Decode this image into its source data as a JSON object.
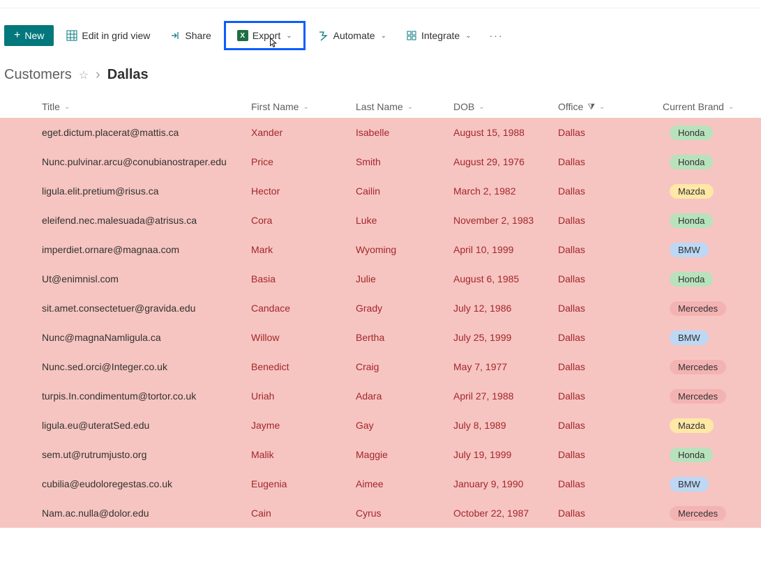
{
  "colors": {
    "row_selected_bg": "#f6c5c1",
    "toolbar_new_bg": "#03787c",
    "highlight_border": "#0b5cff",
    "text_red": "#a4262c"
  },
  "toolbar": {
    "new_label": "New",
    "edit_label": "Edit in grid view",
    "share_label": "Share",
    "export_label": "Export",
    "automate_label": "Automate",
    "integrate_label": "Integrate"
  },
  "breadcrumb": {
    "list": "Customers",
    "view": "Dallas"
  },
  "columns": {
    "title": "Title",
    "first_name": "First Name",
    "last_name": "Last Name",
    "dob": "DOB",
    "office": "Office",
    "brand": "Current Brand"
  },
  "brand_colors": {
    "Honda": "#b7e2bc",
    "Mazda": "#ffe8a6",
    "BMW": "#bcd8f5",
    "Mercedes": "#f4b3b3"
  },
  "rows": [
    {
      "title": "eget.dictum.placerat@mattis.ca",
      "first": "Xander",
      "last": "Isabelle",
      "dob": "August 15, 1988",
      "office": "Dallas",
      "brand": "Honda"
    },
    {
      "title": "Nunc.pulvinar.arcu@conubianostraper.edu",
      "first": "Price",
      "last": "Smith",
      "dob": "August 29, 1976",
      "office": "Dallas",
      "brand": "Honda"
    },
    {
      "title": "ligula.elit.pretium@risus.ca",
      "first": "Hector",
      "last": "Cailin",
      "dob": "March 2, 1982",
      "office": "Dallas",
      "brand": "Mazda"
    },
    {
      "title": "eleifend.nec.malesuada@atrisus.ca",
      "first": "Cora",
      "last": "Luke",
      "dob": "November 2, 1983",
      "office": "Dallas",
      "brand": "Honda"
    },
    {
      "title": "imperdiet.ornare@magnaa.com",
      "first": "Mark",
      "last": "Wyoming",
      "dob": "April 10, 1999",
      "office": "Dallas",
      "brand": "BMW"
    },
    {
      "title": "Ut@enimnisl.com",
      "first": "Basia",
      "last": "Julie",
      "dob": "August 6, 1985",
      "office": "Dallas",
      "brand": "Honda"
    },
    {
      "title": "sit.amet.consectetuer@gravida.edu",
      "first": "Candace",
      "last": "Grady",
      "dob": "July 12, 1986",
      "office": "Dallas",
      "brand": "Mercedes"
    },
    {
      "title": "Nunc@magnaNamligula.ca",
      "first": "Willow",
      "last": "Bertha",
      "dob": "July 25, 1999",
      "office": "Dallas",
      "brand": "BMW"
    },
    {
      "title": "Nunc.sed.orci@Integer.co.uk",
      "first": "Benedict",
      "last": "Craig",
      "dob": "May 7, 1977",
      "office": "Dallas",
      "brand": "Mercedes"
    },
    {
      "title": "turpis.In.condimentum@tortor.co.uk",
      "first": "Uriah",
      "last": "Adara",
      "dob": "April 27, 1988",
      "office": "Dallas",
      "brand": "Mercedes"
    },
    {
      "title": "ligula.eu@uteratSed.edu",
      "first": "Jayme",
      "last": "Gay",
      "dob": "July 8, 1989",
      "office": "Dallas",
      "brand": "Mazda"
    },
    {
      "title": "sem.ut@rutrumjusto.org",
      "first": "Malik",
      "last": "Maggie",
      "dob": "July 19, 1999",
      "office": "Dallas",
      "brand": "Honda"
    },
    {
      "title": "cubilia@eudoloregestas.co.uk",
      "first": "Eugenia",
      "last": "Aimee",
      "dob": "January 9, 1990",
      "office": "Dallas",
      "brand": "BMW"
    },
    {
      "title": "Nam.ac.nulla@dolor.edu",
      "first": "Cain",
      "last": "Cyrus",
      "dob": "October 22, 1987",
      "office": "Dallas",
      "brand": "Mercedes"
    }
  ]
}
